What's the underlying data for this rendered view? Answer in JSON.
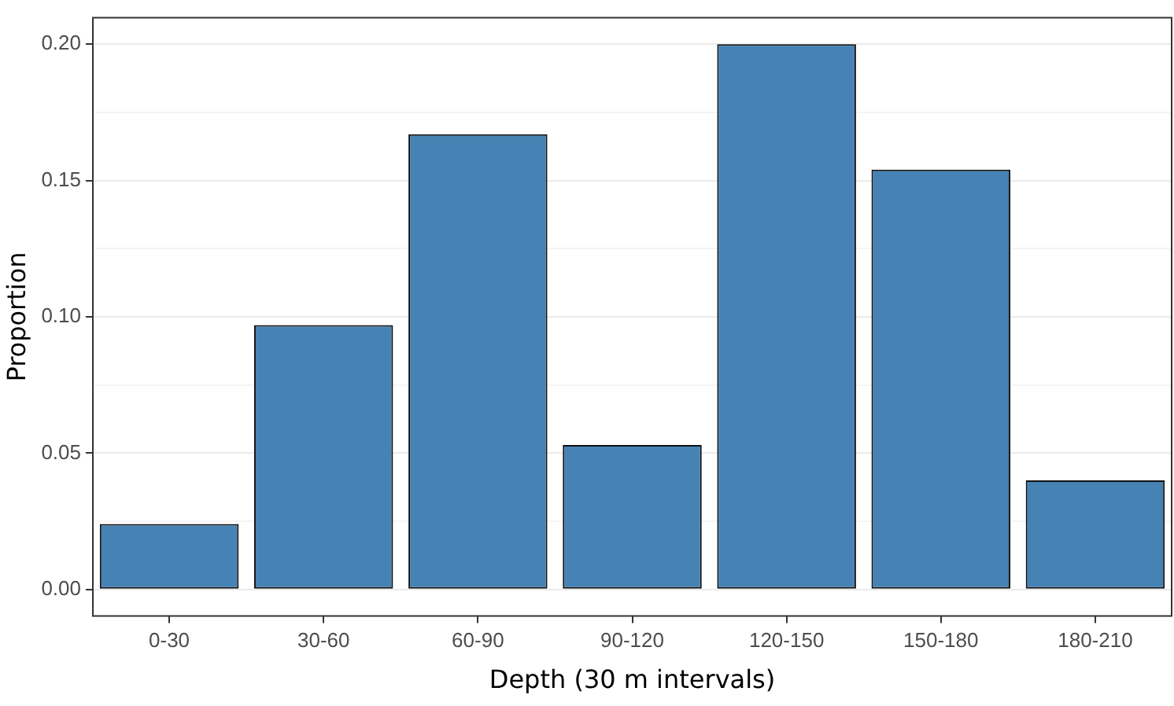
{
  "chart_data": {
    "type": "bar",
    "xlabel": "Depth (30 m intervals)",
    "ylabel": "Proportion",
    "categories": [
      "0-30",
      "30-60",
      "60-90",
      "90-120",
      "120-150",
      "150-180",
      "180-210"
    ],
    "series": [
      {
        "color": "#4682b4",
        "values": [
          0.024,
          0.097,
          0.167,
          0.053,
          0.2,
          0.154,
          0.04
        ]
      }
    ],
    "ylim": [
      -0.01,
      0.21
    ],
    "yticks": [
      {
        "value": 0,
        "label": "0.00"
      },
      {
        "value": 0.025,
        "label": null
      },
      {
        "value": 0.05,
        "label": "0.05"
      },
      {
        "value": 0.075,
        "label": null
      },
      {
        "value": 0.1,
        "label": "0.10"
      },
      {
        "value": 0.125,
        "label": null
      },
      {
        "value": 0.15,
        "label": "0.15"
      },
      {
        "value": 0.175,
        "label": null
      },
      {
        "value": 0.2,
        "label": "0.20"
      }
    ],
    "grid": "y"
  }
}
